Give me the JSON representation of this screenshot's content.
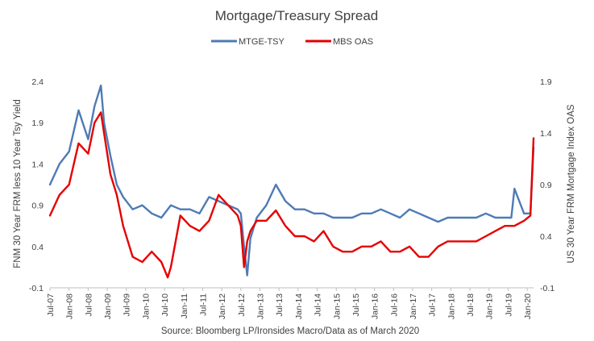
{
  "chart_data": {
    "type": "line",
    "title": "Mortgage/Treasury Spread",
    "source": "Source: Bloomberg LP/Ironsides Macro/Data as of March 2020",
    "y_left_label": "FNM 30 Year FRM less 10 Year Tsy Yield",
    "y_right_label": "US 30 Year FRM Mortgage Index OAS",
    "y_left_ticks": [
      "2.4",
      "1.9",
      "1.4",
      "0.9",
      "0.4",
      "-0.1"
    ],
    "y_right_ticks": [
      "1.9",
      "1.4",
      "0.9",
      "0.4",
      "-0.1"
    ],
    "y_left_range": [
      -0.1,
      2.4
    ],
    "y_right_range": [
      -0.1,
      1.9
    ],
    "grid": false,
    "legend_position": "top",
    "x_tick_labels": [
      "Jul-07",
      "Jan-08",
      "Jul-08",
      "Jan-09",
      "Jul-09",
      "Jan-10",
      "Jul-10",
      "Jan-11",
      "Jul-11",
      "Jan-12",
      "Jul-12",
      "Jan-13",
      "Jul-13",
      "Jan-14",
      "Jul-14",
      "Jan-15",
      "Jul-15",
      "Jan-16",
      "Jul-16",
      "Jan-17",
      "Jul-17",
      "Jan-18",
      "Jul-18",
      "Jan-19",
      "Jul-19",
      "Jan-20"
    ],
    "x_range": [
      "Jul-07",
      "Mar-20"
    ],
    "series": [
      {
        "name": "MTGE-TSY",
        "axis": "left",
        "color": "#4e7bb5",
        "x": [
          "Jul-07",
          "Oct-07",
          "Jan-08",
          "Apr-08",
          "Jul-08",
          "Sep-08",
          "Nov-08",
          "Dec-08",
          "Feb-09",
          "Apr-09",
          "Jun-09",
          "Sep-09",
          "Dec-09",
          "Mar-10",
          "Jun-10",
          "Sep-10",
          "Dec-10",
          "Mar-11",
          "Jun-11",
          "Sep-11",
          "Dec-11",
          "Mar-12",
          "Jun-12",
          "Jul-12",
          "Aug-12",
          "Sep-12",
          "Oct-12",
          "Dec-12",
          "Mar-13",
          "Jun-13",
          "Sep-13",
          "Dec-13",
          "Mar-14",
          "Jun-14",
          "Sep-14",
          "Dec-14",
          "Mar-15",
          "Jun-15",
          "Sep-15",
          "Dec-15",
          "Mar-16",
          "Jun-16",
          "Sep-16",
          "Dec-16",
          "Mar-17",
          "Jun-17",
          "Sep-17",
          "Dec-17",
          "Mar-18",
          "Jun-18",
          "Sep-18",
          "Dec-18",
          "Mar-19",
          "Jun-19",
          "Aug-19",
          "Sep-19",
          "Dec-19",
          "Feb-20",
          "Mar-20"
        ],
        "values": [
          1.15,
          1.4,
          1.55,
          2.05,
          1.7,
          2.1,
          2.35,
          1.9,
          1.5,
          1.15,
          1.0,
          0.85,
          0.9,
          0.8,
          0.75,
          0.9,
          0.85,
          0.85,
          0.8,
          1.0,
          0.95,
          0.9,
          0.85,
          0.8,
          0.4,
          0.05,
          0.5,
          0.75,
          0.9,
          1.15,
          0.95,
          0.85,
          0.85,
          0.8,
          0.8,
          0.75,
          0.75,
          0.75,
          0.8,
          0.8,
          0.85,
          0.8,
          0.75,
          0.85,
          0.8,
          0.75,
          0.7,
          0.75,
          0.75,
          0.75,
          0.75,
          0.8,
          0.75,
          0.75,
          0.75,
          1.1,
          0.8,
          0.8,
          1.6
        ]
      },
      {
        "name": "MBS OAS",
        "axis": "right",
        "color": "#e60000",
        "x": [
          "Jul-07",
          "Oct-07",
          "Jan-08",
          "Apr-08",
          "Jul-08",
          "Sep-08",
          "Nov-08",
          "Dec-08",
          "Feb-09",
          "Apr-09",
          "Jun-09",
          "Sep-09",
          "Dec-09",
          "Mar-10",
          "Jun-10",
          "Aug-10",
          "Sep-10",
          "Dec-10",
          "Mar-11",
          "Jun-11",
          "Sep-11",
          "Dec-11",
          "Mar-12",
          "Jun-12",
          "Jul-12",
          "Aug-12",
          "Sep-12",
          "Oct-12",
          "Dec-12",
          "Mar-13",
          "Jun-13",
          "Sep-13",
          "Dec-13",
          "Mar-14",
          "Jun-14",
          "Sep-14",
          "Dec-14",
          "Mar-15",
          "Jun-15",
          "Sep-15",
          "Dec-15",
          "Mar-16",
          "Jun-16",
          "Sep-16",
          "Dec-16",
          "Mar-17",
          "Jun-17",
          "Sep-17",
          "Dec-17",
          "Mar-18",
          "Jun-18",
          "Sep-18",
          "Dec-18",
          "Mar-19",
          "Jun-19",
          "Sep-19",
          "Dec-19",
          "Feb-20",
          "Mar-20"
        ],
        "values": [
          0.6,
          0.8,
          0.9,
          1.3,
          1.2,
          1.5,
          1.6,
          1.4,
          1.0,
          0.8,
          0.5,
          0.2,
          0.15,
          0.25,
          0.15,
          0.0,
          0.1,
          0.6,
          0.5,
          0.45,
          0.55,
          0.8,
          0.7,
          0.6,
          0.5,
          0.1,
          0.35,
          0.45,
          0.55,
          0.55,
          0.65,
          0.5,
          0.4,
          0.4,
          0.35,
          0.45,
          0.3,
          0.25,
          0.25,
          0.3,
          0.3,
          0.35,
          0.25,
          0.25,
          0.3,
          0.2,
          0.2,
          0.3,
          0.35,
          0.35,
          0.35,
          0.35,
          0.4,
          0.45,
          0.5,
          0.5,
          0.55,
          0.6,
          1.35
        ]
      }
    ]
  }
}
